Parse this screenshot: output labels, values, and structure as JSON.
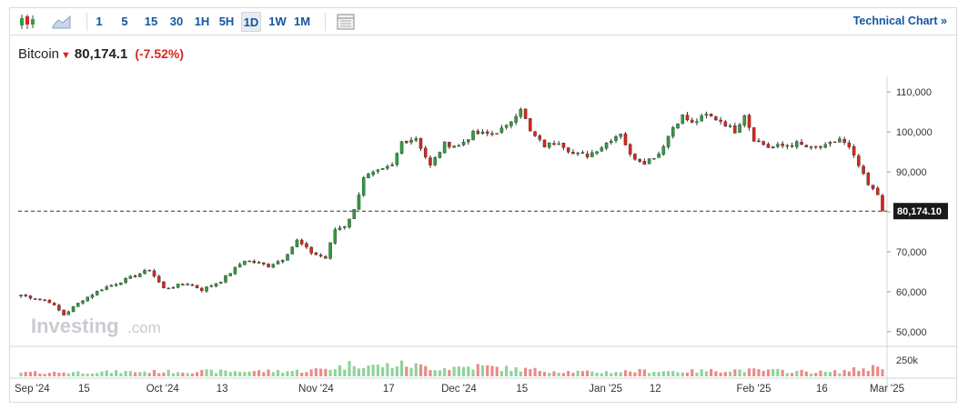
{
  "toolbar": {
    "timeframes": [
      "1",
      "5",
      "15",
      "30",
      "1H",
      "5H",
      "1D",
      "1W",
      "1M"
    ],
    "active_timeframe": "1D",
    "technical_chart_label": "Technical Chart »",
    "icons": [
      "candlestick-icon",
      "area-chart-icon",
      "table-icon"
    ]
  },
  "header": {
    "name": "Bitcoin",
    "direction_icon": "down-arrow-icon",
    "price": "80,174.1",
    "change": "(-7.52%)"
  },
  "colors": {
    "up": "#2e9e3e",
    "down": "#d9261c",
    "vol_up": "#8ed39a",
    "vol_down": "#e98b86",
    "accent": "#1256a0"
  },
  "watermark": {
    "main": "Investing",
    "suffix": ".com"
  },
  "chart_data": {
    "type": "candlestick",
    "y_axis": {
      "ticks": [
        "110,000",
        "100,000",
        "90,000",
        "80,000",
        "70,000",
        "60,000",
        "50,000"
      ],
      "ylim": [
        47000,
        113000
      ]
    },
    "volume_axis": {
      "ticks": [
        "250k"
      ],
      "ylim": [
        0,
        300000
      ]
    },
    "last_price_label": "80,174.10",
    "last_price": 80174.1,
    "x_labels": [
      {
        "label": "Sep '24",
        "index": 0
      },
      {
        "label": "15",
        "index": 13
      },
      {
        "label": "Oct '24",
        "index": 29
      },
      {
        "label": "13",
        "index": 42
      },
      {
        "label": "Nov '24",
        "index": 61
      },
      {
        "label": "17",
        "index": 77
      },
      {
        "label": "Dec '24",
        "index": 91
      },
      {
        "label": "15",
        "index": 105
      },
      {
        "label": "Jan '25",
        "index": 122
      },
      {
        "label": "12",
        "index": 133
      },
      {
        "label": "Feb '25",
        "index": 153
      },
      {
        "label": "16",
        "index": 168
      },
      {
        "label": "Mar '25",
        "index": 181
      }
    ],
    "close_points": [
      [
        0,
        59200
      ],
      [
        6,
        57500
      ],
      [
        9,
        54200
      ],
      [
        13,
        58000
      ],
      [
        17,
        60700
      ],
      [
        22,
        63000
      ],
      [
        27,
        65500
      ],
      [
        30,
        60800
      ],
      [
        35,
        62100
      ],
      [
        38,
        60500
      ],
      [
        42,
        62700
      ],
      [
        47,
        67900
      ],
      [
        52,
        66500
      ],
      [
        55,
        68200
      ],
      [
        58,
        72800
      ],
      [
        61,
        69800
      ],
      [
        64,
        68400
      ],
      [
        66,
        75600
      ],
      [
        68,
        76500
      ],
      [
        70,
        80400
      ],
      [
        72,
        88800
      ],
      [
        76,
        90400
      ],
      [
        78,
        91500
      ],
      [
        80,
        97500
      ],
      [
        83,
        98500
      ],
      [
        86,
        91500
      ],
      [
        89,
        97000
      ],
      [
        92,
        96500
      ],
      [
        95,
        99600
      ],
      [
        99,
        99500
      ],
      [
        102,
        101200
      ],
      [
        105,
        106100
      ],
      [
        107,
        100000
      ],
      [
        110,
        96500
      ],
      [
        113,
        97600
      ],
      [
        116,
        94500
      ],
      [
        119,
        94100
      ],
      [
        122,
        96300
      ],
      [
        124,
        98200
      ],
      [
        126,
        99800
      ],
      [
        128,
        94100
      ],
      [
        131,
        92400
      ],
      [
        134,
        94600
      ],
      [
        137,
        101200
      ],
      [
        139,
        104000
      ],
      [
        141,
        102100
      ],
      [
        144,
        104200
      ],
      [
        147,
        102800
      ],
      [
        150,
        100200
      ],
      [
        152,
        104500
      ],
      [
        154,
        98200
      ],
      [
        157,
        96200
      ],
      [
        160,
        96500
      ],
      [
        163,
        97100
      ],
      [
        166,
        95800
      ],
      [
        169,
        96300
      ],
      [
        172,
        98300
      ],
      [
        174,
        95900
      ],
      [
        176,
        91500
      ],
      [
        178,
        86600
      ],
      [
        180,
        84300
      ],
      [
        181,
        80174
      ]
    ],
    "volume_points": [
      [
        0,
        40000
      ],
      [
        20,
        50000
      ],
      [
        40,
        55000
      ],
      [
        60,
        60000
      ],
      [
        68,
        110000
      ],
      [
        70,
        150000
      ],
      [
        74,
        110000
      ],
      [
        80,
        130000
      ],
      [
        88,
        90000
      ],
      [
        96,
        110000
      ],
      [
        104,
        80000
      ],
      [
        112,
        60000
      ],
      [
        120,
        45000
      ],
      [
        130,
        60000
      ],
      [
        140,
        55000
      ],
      [
        150,
        70000
      ],
      [
        160,
        60000
      ],
      [
        170,
        45000
      ],
      [
        178,
        90000
      ],
      [
        181,
        120000
      ]
    ],
    "num_candles": 182
  }
}
